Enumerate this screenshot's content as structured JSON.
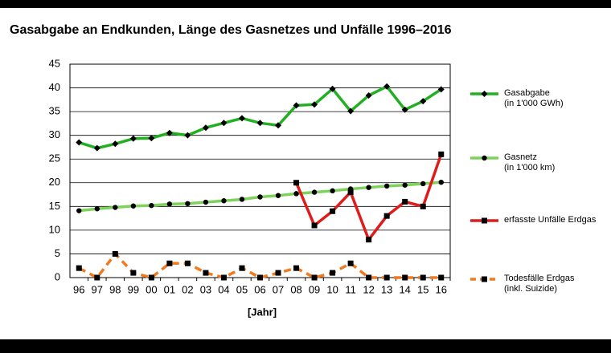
{
  "chart_data": {
    "type": "line",
    "title": "Gasabgabe an Endkunden, Länge des Gasnetzes und Unfälle 1996–2016",
    "x_label": "[Jahr]",
    "categories": [
      "96",
      "97",
      "98",
      "99",
      "00",
      "01",
      "02",
      "03",
      "04",
      "05",
      "06",
      "07",
      "08",
      "09",
      "10",
      "11",
      "12",
      "13",
      "14",
      "15",
      "16"
    ],
    "ylim": [
      0,
      45
    ],
    "yticks": [
      0,
      5,
      10,
      15,
      20,
      25,
      30,
      35,
      40,
      45
    ],
    "grid": true,
    "series": [
      {
        "name": "Gasabgabe\n(in 1'000 GWh)",
        "color": "#22b022",
        "marker": "diamond",
        "dash": "solid",
        "values": [
          28.5,
          27.3,
          28.2,
          29.3,
          29.4,
          30.5,
          30.0,
          31.6,
          32.6,
          33.6,
          32.6,
          32.1,
          36.3,
          36.5,
          39.8,
          35.1,
          38.4,
          40.3,
          35.4,
          37.2,
          39.7
        ]
      },
      {
        "name": "Gasnetz\n(in 1'000 km)",
        "color": "#7dd35a",
        "marker": "circle",
        "dash": "solid",
        "values": [
          14.1,
          14.5,
          14.8,
          15.1,
          15.2,
          15.5,
          15.6,
          15.9,
          16.2,
          16.5,
          17.0,
          17.3,
          17.7,
          18.0,
          18.3,
          18.7,
          19.0,
          19.3,
          19.5,
          19.8,
          20.1
        ]
      },
      {
        "name": "erfasste Unfälle Erdgas",
        "color": "#e01b1b",
        "marker": "square",
        "dash": "solid",
        "values": [
          null,
          null,
          null,
          null,
          null,
          null,
          null,
          null,
          null,
          null,
          null,
          null,
          20,
          11,
          14,
          18,
          8,
          13,
          16,
          15,
          26
        ]
      },
      {
        "name": "Todesfälle Erdgas\n(inkl. Suizide)",
        "color": "#f07a20",
        "marker": "square",
        "dash": "dashed",
        "values": [
          2,
          0,
          5,
          1,
          0,
          3,
          3,
          1,
          0,
          2,
          0,
          1,
          2,
          0,
          1,
          3,
          0,
          0,
          0,
          0,
          0
        ]
      }
    ]
  }
}
